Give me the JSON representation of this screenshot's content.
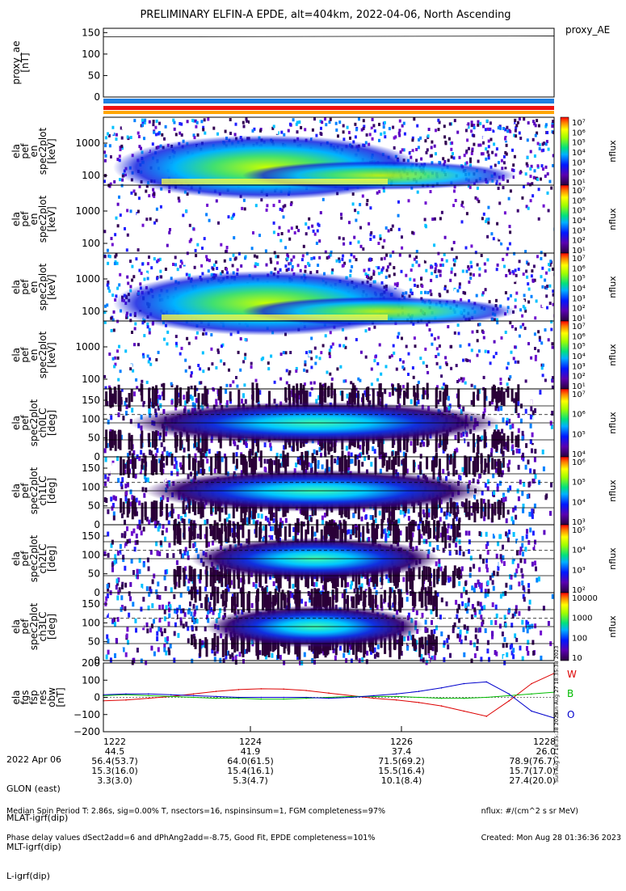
{
  "title": "PRELIMINARY ELFIN-A EPDE, alt=404km, 2022-04-06, North Ascending",
  "panels": [
    {
      "id": "proxy_ae",
      "ylabel": [
        "proxy_ae",
        "[nT]"
      ],
      "ticks": [
        "150",
        "100",
        "50",
        "0"
      ],
      "legend": "proxy_AE"
    },
    {
      "id": "pef_en_1",
      "ylabel": [
        "ela",
        "pef",
        "en",
        "spec2plot",
        "[keV]"
      ],
      "ticks": [
        "1000",
        "100"
      ],
      "cbar_ticks": [
        "10⁷",
        "10⁶",
        "10⁵",
        "10⁴",
        "10³",
        "10²",
        "10¹"
      ],
      "cbar_label": "nflux"
    },
    {
      "id": "pef_en_2",
      "ylabel": [
        "ela",
        "pef",
        "en",
        "spec2plot",
        "[keV]"
      ],
      "ticks": [
        "1000",
        "100"
      ],
      "cbar_ticks": [
        "10⁷",
        "10⁶",
        "10⁵",
        "10⁴",
        "10³",
        "10²",
        "10¹"
      ],
      "cbar_label": "nflux"
    },
    {
      "id": "pef_en_3",
      "ylabel": [
        "ela",
        "pef",
        "en",
        "spec2plot",
        "[keV]"
      ],
      "ticks": [
        "1000",
        "100"
      ],
      "cbar_ticks": [
        "10⁷",
        "10⁶",
        "10⁵",
        "10⁴",
        "10³",
        "10²",
        "10¹"
      ],
      "cbar_label": "nflux"
    },
    {
      "id": "pef_en_4",
      "ylabel": [
        "ela",
        "pef",
        "en",
        "spec2plot",
        "[keV]"
      ],
      "ticks": [
        "1000",
        "100"
      ],
      "cbar_ticks": [
        "10⁷",
        "10⁶",
        "10⁵",
        "10⁴",
        "10³",
        "10²",
        "10¹"
      ],
      "cbar_label": "nflux"
    },
    {
      "id": "pa_ch0",
      "ylabel": [
        "ela",
        "pef",
        "spec2plot",
        "ch0LC",
        "[deg]"
      ],
      "ticks": [
        "150",
        "100",
        "50",
        "0"
      ],
      "cbar_ticks": [
        "10⁷",
        "10⁶",
        "10⁵",
        "10⁴"
      ],
      "cbar_label": "nflux"
    },
    {
      "id": "pa_ch1",
      "ylabel": [
        "ela",
        "pef",
        "spec2plot",
        "ch1LC",
        "[deg]"
      ],
      "ticks": [
        "150",
        "100",
        "50",
        "0"
      ],
      "cbar_ticks": [
        "10⁶",
        "10⁵",
        "10⁴",
        "10³"
      ],
      "cbar_label": "nflux"
    },
    {
      "id": "pa_ch2",
      "ylabel": [
        "ela",
        "pef",
        "spec2plot",
        "ch2LC",
        "[deg]"
      ],
      "ticks": [
        "150",
        "100",
        "50",
        "0"
      ],
      "cbar_ticks": [
        "10⁵",
        "10⁴",
        "10³",
        "10²"
      ],
      "cbar_label": "nflux"
    },
    {
      "id": "pa_ch3",
      "ylabel": [
        "ela",
        "pef",
        "spec2plot",
        "ch3LC",
        "[deg]"
      ],
      "ticks": [
        "150",
        "100",
        "50",
        "0"
      ],
      "cbar_ticks": [
        "10000",
        "1000",
        "100",
        "10"
      ],
      "cbar_label": "nflux"
    },
    {
      "id": "fgm",
      "ylabel": [
        "ela",
        "fgs",
        "fsp",
        "res",
        "obw",
        "[nT]"
      ],
      "ticks": [
        "200",
        "100",
        "0",
        "−100",
        "−200"
      ],
      "legend_items": [
        {
          "label": "W",
          "color": "#dd0000"
        },
        {
          "label": "B",
          "color": "#00bb00"
        },
        {
          "label": "O",
          "color": "#0000cc"
        }
      ]
    }
  ],
  "chart_data": {
    "type": "line",
    "panel": "fgm",
    "ylim": [
      -200,
      200
    ],
    "x": [
      1222.0,
      1222.3,
      1222.6,
      1222.9,
      1223.2,
      1223.5,
      1223.8,
      1224.1,
      1224.4,
      1224.7,
      1225.0,
      1225.3,
      1225.6,
      1225.9,
      1226.2,
      1226.5,
      1226.8,
      1227.1,
      1227.4,
      1227.7,
      1228.0
    ],
    "series": [
      {
        "name": "W",
        "color": "#dd0000",
        "values": [
          -20,
          -15,
          -5,
          5,
          20,
          35,
          45,
          50,
          48,
          40,
          25,
          10,
          -5,
          -15,
          -30,
          -50,
          -80,
          -110,
          -20,
          80,
          140
        ]
      },
      {
        "name": "B",
        "color": "#00bb00",
        "values": [
          10,
          15,
          10,
          5,
          0,
          -5,
          -5,
          -10,
          -10,
          -5,
          0,
          5,
          5,
          5,
          0,
          -5,
          -5,
          0,
          10,
          20,
          30
        ]
      },
      {
        "name": "O",
        "color": "#0000cc",
        "values": [
          15,
          20,
          20,
          15,
          10,
          5,
          0,
          0,
          0,
          0,
          -5,
          0,
          10,
          20,
          35,
          55,
          80,
          90,
          20,
          -80,
          -120
        ]
      }
    ]
  },
  "x_axis": {
    "labels": [
      "1222",
      "1224",
      "1226",
      "1228"
    ],
    "rows": [
      {
        "name": "2022 Apr 06",
        "values": [
          "1222",
          "1224",
          "1226",
          "1228"
        ]
      },
      {
        "name": "GLON (east)",
        "values": [
          "44.5",
          "41.9",
          "37.4",
          "26.0"
        ]
      },
      {
        "name": "MLAT-igrf(dip)",
        "values": [
          "56.4(53.7)",
          "64.0(61.5)",
          "71.5(69.2)",
          "78.9(76.7)"
        ]
      },
      {
        "name": "MLT-igrf(dip)",
        "values": [
          "15.3(16.0)",
          "15.4(16.1)",
          "15.5(16.4)",
          "15.7(17.0)"
        ]
      },
      {
        "name": "L-igrf(dip)",
        "values": [
          "3.3(3.0)",
          "5.3(4.7)",
          "10.1(8.4)",
          "27.4(20.0)"
        ]
      }
    ]
  },
  "footer": {
    "line1": "Median Spin Period T: 2.86s, sig=0.00% T, nsectors=16, nspinsinsum=1, FGM completeness=97%",
    "line2": "Phase delay values dSect2add=6 and dPhAng2add=-8.75, Good Fit, EPDE completeness=101%",
    "right1": "nflux: #/(cm^2 s sr MeV)",
    "right2": "Created: Mon Aug 28 01:36:36 2023",
    "vertical1": "Sun Aug 27 18:35:38 2023",
    "vertical2": "Sun Aug 27 18:35:38 2023"
  },
  "colors": {
    "bar_blue": "#1f7fe0",
    "bar_red": "#ee1111",
    "bar_orange": "#ffa500"
  }
}
